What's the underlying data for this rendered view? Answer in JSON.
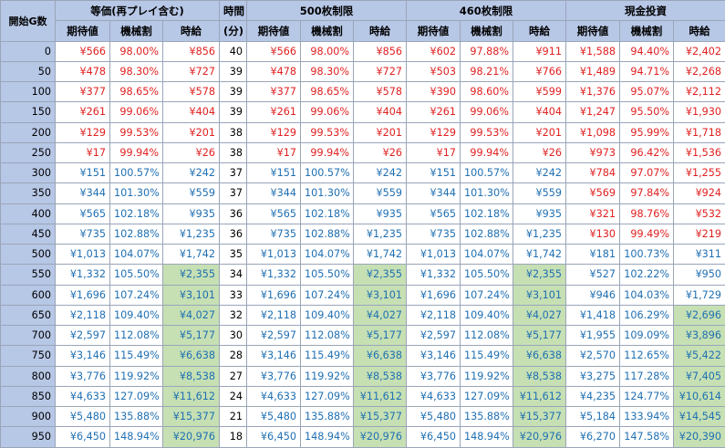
{
  "headers": {
    "start": "開始G数",
    "groups": [
      "等価(再プレイ含む)",
      "時間",
      "500枚制限",
      "460枚制限",
      "現金投資"
    ],
    "sub": [
      "期待値",
      "機械割",
      "時給"
    ],
    "time_unit": "(分)"
  },
  "rows": [
    {
      "g": "0",
      "t": "40",
      "c": [
        [
          "¥566",
          "98.00%",
          "¥856"
        ],
        [
          "¥566",
          "98.00%",
          "¥856"
        ],
        [
          "¥602",
          "97.88%",
          "¥911"
        ],
        [
          "¥1,588",
          "94.40%",
          "¥2,402"
        ]
      ]
    },
    {
      "g": "50",
      "t": "39",
      "c": [
        [
          "¥478",
          "98.30%",
          "¥727"
        ],
        [
          "¥478",
          "98.30%",
          "¥727"
        ],
        [
          "¥503",
          "98.21%",
          "¥766"
        ],
        [
          "¥1,489",
          "94.71%",
          "¥2,268"
        ]
      ]
    },
    {
      "g": "100",
      "t": "39",
      "c": [
        [
          "¥377",
          "98.65%",
          "¥578"
        ],
        [
          "¥377",
          "98.65%",
          "¥578"
        ],
        [
          "¥390",
          "98.60%",
          "¥599"
        ],
        [
          "¥1,376",
          "95.07%",
          "¥2,112"
        ]
      ]
    },
    {
      "g": "150",
      "t": "39",
      "c": [
        [
          "¥261",
          "99.06%",
          "¥404"
        ],
        [
          "¥261",
          "99.06%",
          "¥404"
        ],
        [
          "¥261",
          "99.06%",
          "¥404"
        ],
        [
          "¥1,247",
          "95.50%",
          "¥1,930"
        ]
      ]
    },
    {
      "g": "200",
      "t": "38",
      "c": [
        [
          "¥129",
          "99.53%",
          "¥201"
        ],
        [
          "¥129",
          "99.53%",
          "¥201"
        ],
        [
          "¥129",
          "99.53%",
          "¥201"
        ],
        [
          "¥1,098",
          "95.99%",
          "¥1,718"
        ]
      ]
    },
    {
      "g": "250",
      "t": "38",
      "c": [
        [
          "¥17",
          "99.94%",
          "¥26"
        ],
        [
          "¥17",
          "99.94%",
          "¥26"
        ],
        [
          "¥17",
          "99.94%",
          "¥26"
        ],
        [
          "¥973",
          "96.42%",
          "¥1,536"
        ]
      ]
    },
    {
      "g": "300",
      "t": "37",
      "c": [
        [
          "¥151",
          "100.57%",
          "¥242"
        ],
        [
          "¥151",
          "100.57%",
          "¥242"
        ],
        [
          "¥151",
          "100.57%",
          "¥242"
        ],
        [
          "¥784",
          "97.07%",
          "¥1,255"
        ]
      ]
    },
    {
      "g": "350",
      "t": "37",
      "c": [
        [
          "¥344",
          "101.30%",
          "¥559"
        ],
        [
          "¥344",
          "101.30%",
          "¥559"
        ],
        [
          "¥344",
          "101.30%",
          "¥559"
        ],
        [
          "¥569",
          "97.84%",
          "¥924"
        ]
      ]
    },
    {
      "g": "400",
      "t": "36",
      "c": [
        [
          "¥565",
          "102.18%",
          "¥935"
        ],
        [
          "¥565",
          "102.18%",
          "¥935"
        ],
        [
          "¥565",
          "102.18%",
          "¥935"
        ],
        [
          "¥321",
          "98.76%",
          "¥532"
        ]
      ]
    },
    {
      "g": "450",
      "t": "36",
      "c": [
        [
          "¥735",
          "102.88%",
          "¥1,235"
        ],
        [
          "¥735",
          "102.88%",
          "¥1,235"
        ],
        [
          "¥735",
          "102.88%",
          "¥1,235"
        ],
        [
          "¥130",
          "99.49%",
          "¥219"
        ]
      ]
    },
    {
      "g": "500",
      "t": "35",
      "c": [
        [
          "¥1,013",
          "104.07%",
          "¥1,742"
        ],
        [
          "¥1,013",
          "104.07%",
          "¥1,742"
        ],
        [
          "¥1,013",
          "104.07%",
          "¥1,742"
        ],
        [
          "¥181",
          "100.73%",
          "¥311"
        ]
      ]
    },
    {
      "g": "550",
      "t": "34",
      "c": [
        [
          "¥1,332",
          "105.50%",
          "¥2,355"
        ],
        [
          "¥1,332",
          "105.50%",
          "¥2,355"
        ],
        [
          "¥1,332",
          "105.50%",
          "¥2,355"
        ],
        [
          "¥527",
          "102.22%",
          "¥950"
        ]
      ]
    },
    {
      "g": "600",
      "t": "33",
      "c": [
        [
          "¥1,696",
          "107.24%",
          "¥3,101"
        ],
        [
          "¥1,696",
          "107.24%",
          "¥3,101"
        ],
        [
          "¥1,696",
          "107.24%",
          "¥3,101"
        ],
        [
          "¥946",
          "104.03%",
          "¥1,729"
        ]
      ]
    },
    {
      "g": "650",
      "t": "32",
      "c": [
        [
          "¥2,118",
          "109.40%",
          "¥4,027"
        ],
        [
          "¥2,118",
          "109.40%",
          "¥4,027"
        ],
        [
          "¥2,118",
          "109.40%",
          "¥4,027"
        ],
        [
          "¥1,418",
          "106.29%",
          "¥2,696"
        ]
      ]
    },
    {
      "g": "700",
      "t": "30",
      "c": [
        [
          "¥2,597",
          "112.08%",
          "¥5,177"
        ],
        [
          "¥2,597",
          "112.08%",
          "¥5,177"
        ],
        [
          "¥2,597",
          "112.08%",
          "¥5,177"
        ],
        [
          "¥1,955",
          "109.09%",
          "¥3,896"
        ]
      ]
    },
    {
      "g": "750",
      "t": "28",
      "c": [
        [
          "¥3,146",
          "115.49%",
          "¥6,638"
        ],
        [
          "¥3,146",
          "115.49%",
          "¥6,638"
        ],
        [
          "¥3,146",
          "115.49%",
          "¥6,638"
        ],
        [
          "¥2,570",
          "112.65%",
          "¥5,422"
        ]
      ]
    },
    {
      "g": "800",
      "t": "27",
      "c": [
        [
          "¥3,776",
          "119.92%",
          "¥8,538"
        ],
        [
          "¥3,776",
          "119.92%",
          "¥8,538"
        ],
        [
          "¥3,776",
          "119.92%",
          "¥8,538"
        ],
        [
          "¥3,275",
          "117.28%",
          "¥7,405"
        ]
      ]
    },
    {
      "g": "850",
      "t": "24",
      "c": [
        [
          "¥4,633",
          "127.09%",
          "¥11,612"
        ],
        [
          "¥4,633",
          "127.09%",
          "¥11,612"
        ],
        [
          "¥4,633",
          "127.09%",
          "¥11,612"
        ],
        [
          "¥4,235",
          "124.77%",
          "¥10,614"
        ]
      ]
    },
    {
      "g": "900",
      "t": "21",
      "c": [
        [
          "¥5,480",
          "135.88%",
          "¥15,377"
        ],
        [
          "¥5,480",
          "135.88%",
          "¥15,377"
        ],
        [
          "¥5,480",
          "135.88%",
          "¥15,377"
        ],
        [
          "¥5,184",
          "133.94%",
          "¥14,545"
        ]
      ]
    },
    {
      "g": "950",
      "t": "18",
      "c": [
        [
          "¥6,450",
          "148.94%",
          "¥20,976"
        ],
        [
          "¥6,450",
          "148.94%",
          "¥20,976"
        ],
        [
          "¥6,450",
          "148.94%",
          "¥20,976"
        ],
        [
          "¥6,270",
          "147.58%",
          "¥20,390"
        ]
      ]
    }
  ],
  "colors": {
    "negative": "#e02020",
    "positive": "#1f6fb2",
    "header_bg": "#b7c7e6",
    "highlight_bg": "#c6e0b4"
  }
}
